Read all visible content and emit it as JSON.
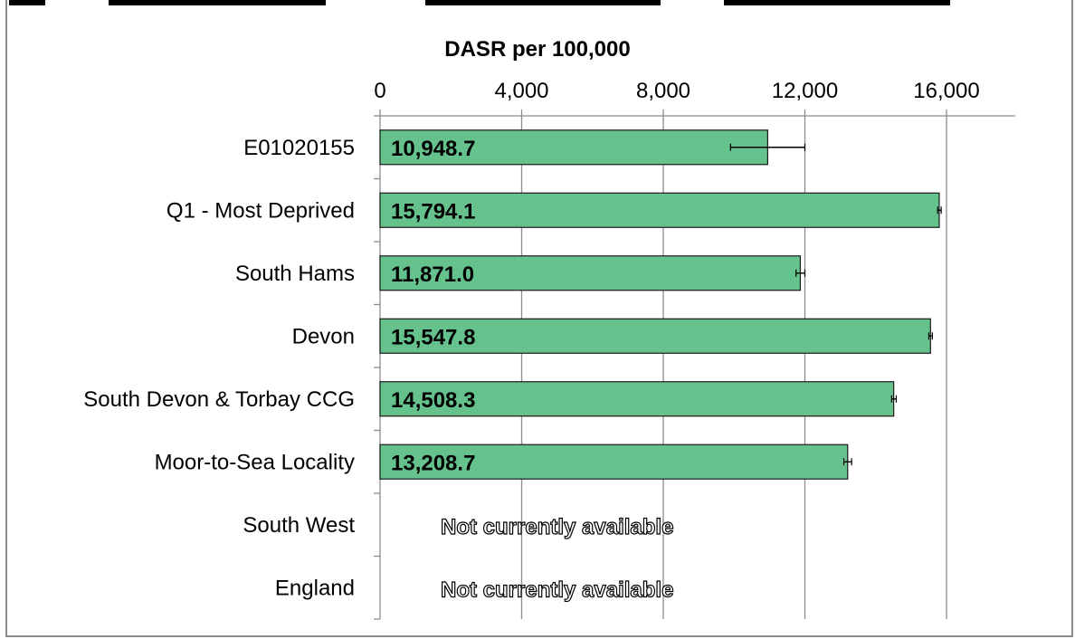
{
  "chart_data": {
    "type": "bar",
    "orientation": "horizontal",
    "title": "DASR per 100,000",
    "xlabel": "DASR per 100,000",
    "ylabel": "",
    "xlim": [
      0,
      18000
    ],
    "x_ticks": [
      0,
      4000,
      8000,
      12000,
      16000
    ],
    "x_tick_labels": [
      "0",
      "4,000",
      "8,000",
      "12,000",
      "16,000"
    ],
    "axis_position": "top",
    "grid": true,
    "legend": "none",
    "categories": [
      "E01020155",
      "Q1 - Most Deprived",
      "South Hams",
      "Devon",
      "South Devon & Torbay CCG",
      "Moor-to-Sea Locality",
      "South West",
      "England"
    ],
    "values": [
      10948.7,
      15794.1,
      11871.0,
      15547.8,
      14508.3,
      13208.7,
      null,
      null
    ],
    "value_labels": [
      "10,948.7",
      "15,794.1",
      "11,871.0",
      "15,547.8",
      "14,508.3",
      "13,208.7",
      "",
      ""
    ],
    "error_low": [
      9900,
      15750,
      11750,
      15500,
      14450,
      13100,
      null,
      null
    ],
    "error_high": [
      12000,
      15850,
      12000,
      15600,
      14580,
      13320,
      null,
      null
    ],
    "unavailable_text": "Not currently available",
    "colors": {
      "bar_fill": "#66c28d",
      "bar_stroke": "#1a1a1a",
      "grid": "#8c8c8c",
      "axis": "#8c8c8c",
      "text": "#000000",
      "frame": "#8c8c8c"
    }
  }
}
